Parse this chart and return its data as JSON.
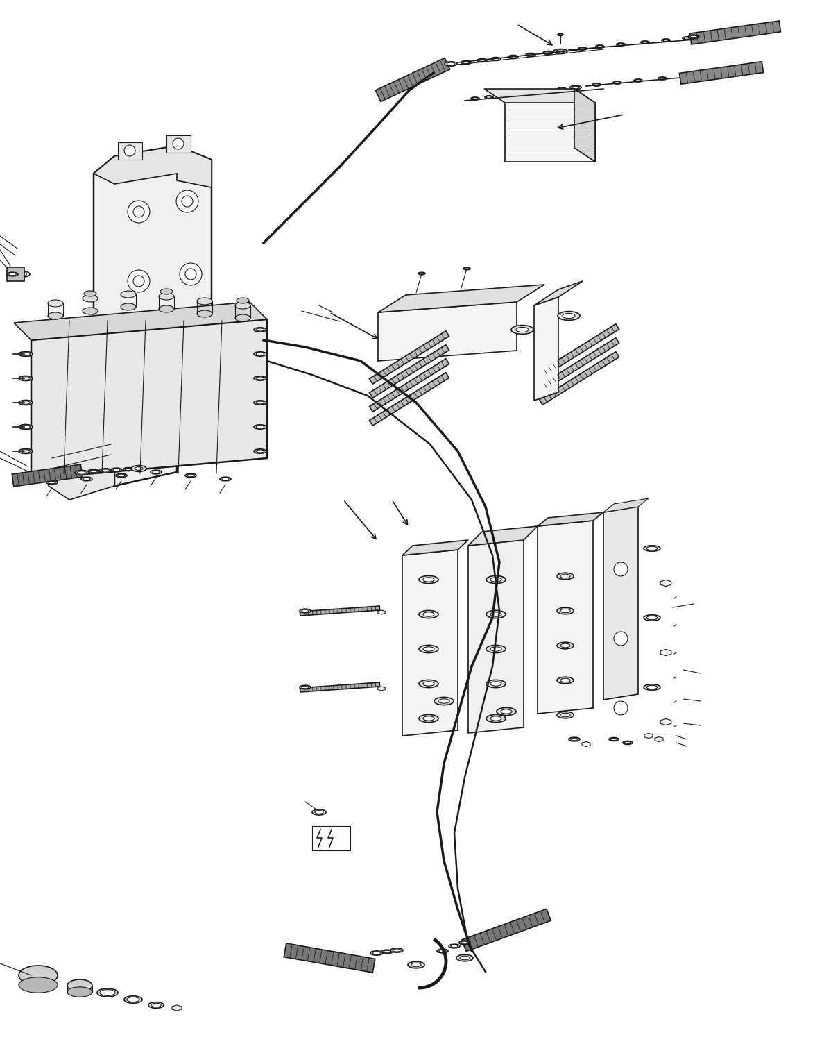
{
  "bg_color": "#ffffff",
  "line_color": "#1a1a1a",
  "fig_width": 11.88,
  "fig_height": 15.04,
  "dpi": 100,
  "hose_color": "#111111",
  "part_face": "#f5f5f5",
  "part_edge": "#111111",
  "gray_fill": "#cccccc",
  "dark_gray": "#888888"
}
